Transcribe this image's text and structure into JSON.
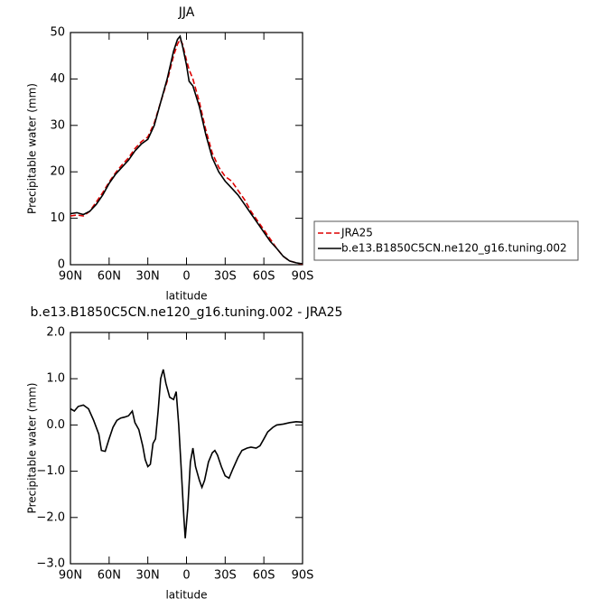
{
  "chart_data": [
    {
      "type": "line",
      "title": "JJA",
      "xlabel": "latitude",
      "ylabel": "Precipitable water (mm)",
      "x": [
        90,
        85,
        80,
        75,
        70,
        65,
        60,
        55,
        50,
        45,
        40,
        35,
        30,
        25,
        20,
        15,
        10,
        7,
        5,
        3,
        0,
        -2,
        -5,
        -10,
        -15,
        -20,
        -25,
        -30,
        -35,
        -40,
        -45,
        -50,
        -55,
        -60,
        -65,
        -70,
        -75,
        -80,
        -85,
        -90
      ],
      "series": [
        {
          "name": "JRA25",
          "color": "#dd0000",
          "line_style": "dashed",
          "values": [
            10.5,
            10.7,
            10.5,
            11.5,
            13.5,
            15.5,
            17.8,
            19.8,
            21.5,
            23,
            25,
            26.5,
            27.5,
            30.5,
            35,
            39.5,
            45,
            47.5,
            48.5,
            47.5,
            44,
            42,
            40,
            35,
            29,
            24,
            21,
            19,
            18,
            16,
            14,
            11.5,
            9.5,
            7.5,
            5.5,
            3.5,
            1.8,
            0.8,
            0.4,
            0.1
          ]
        },
        {
          "name": "b.e13.B1850C5CN.ne120_g16.tuning.002",
          "color": "#000000",
          "line_style": "solid",
          "values": [
            11,
            11.2,
            10.8,
            11.5,
            13,
            15,
            17.5,
            19.5,
            21,
            22.5,
            24.5,
            26,
            27,
            30,
            35,
            40,
            46,
            48.5,
            49.2,
            47,
            43,
            39.5,
            38.5,
            34,
            28,
            23,
            20,
            18,
            16.5,
            15,
            13,
            11,
            9,
            7,
            5,
            3.5,
            1.8,
            0.8,
            0.4,
            0.2
          ]
        }
      ],
      "xlim": [
        90,
        -90
      ],
      "xticks": [
        {
          "value": 90,
          "label": "90N"
        },
        {
          "value": 60,
          "label": "60N"
        },
        {
          "value": 30,
          "label": "30N"
        },
        0,
        {
          "value": -30,
          "label": "30S"
        },
        {
          "value": -60,
          "label": "60S"
        },
        {
          "value": -90,
          "label": "90S"
        }
      ],
      "ylim": [
        0,
        50
      ],
      "yticks": [
        0,
        10,
        20,
        30,
        40,
        50
      ]
    },
    {
      "type": "line",
      "title": "b.e13.B1850C5CN.ne120_g16.tuning.002 - JRA25",
      "xlabel": "latitude",
      "ylabel": "Precipitable water (mm)",
      "x": [
        90,
        87,
        84,
        80,
        76,
        72,
        68,
        66,
        63,
        60,
        57,
        54,
        51,
        48,
        45,
        42,
        40,
        37,
        34,
        32,
        30,
        28,
        26,
        24,
        22,
        20,
        18,
        16,
        13,
        10,
        8,
        6,
        4,
        2,
        1,
        -1,
        -3,
        -5,
        -7,
        -10,
        -12,
        -14,
        -17,
        -20,
        -22,
        -24,
        -27,
        -30,
        -33,
        -36,
        -40,
        -43,
        -47,
        -50,
        -54,
        -57,
        -60,
        -63,
        -67,
        -70,
        -75,
        -80,
        -85,
        -90
      ],
      "series": [
        {
          "color": "#000000",
          "line_style": "solid",
          "values": [
            0.35,
            0.3,
            0.4,
            0.43,
            0.35,
            0.1,
            -0.2,
            -0.55,
            -0.57,
            -0.3,
            -0.05,
            0.1,
            0.15,
            0.17,
            0.2,
            0.3,
            0.05,
            -0.1,
            -0.45,
            -0.75,
            -0.9,
            -0.85,
            -0.4,
            -0.3,
            0.3,
            1.0,
            1.2,
            0.9,
            0.6,
            0.55,
            0.72,
            0.0,
            -1.0,
            -2.0,
            -2.45,
            -1.8,
            -0.8,
            -0.5,
            -0.9,
            -1.2,
            -1.35,
            -1.2,
            -0.8,
            -0.6,
            -0.55,
            -0.65,
            -0.9,
            -1.1,
            -1.15,
            -0.95,
            -0.7,
            -0.55,
            -0.5,
            -0.48,
            -0.5,
            -0.45,
            -0.3,
            -0.15,
            -0.05,
            0.0,
            0.02,
            0.05,
            0.07,
            0.06
          ]
        }
      ],
      "xlim": [
        90,
        -90
      ],
      "xticks": [
        {
          "value": 90,
          "label": "90N"
        },
        {
          "value": 60,
          "label": "60N"
        },
        {
          "value": 30,
          "label": "30N"
        },
        0,
        {
          "value": -30,
          "label": "30S"
        },
        {
          "value": -60,
          "label": "60S"
        },
        {
          "value": -90,
          "label": "90S"
        }
      ],
      "ylim": [
        -3,
        2
      ],
      "yticks": [
        {
          "value": -3,
          "label": "−3.0"
        },
        {
          "value": -2,
          "label": "−2.0"
        },
        {
          "value": -1,
          "label": "−1.0"
        },
        {
          "value": 0,
          "label": "0.0"
        },
        {
          "value": 1,
          "label": "1.0"
        },
        {
          "value": 2,
          "label": "2.0"
        }
      ]
    }
  ]
}
